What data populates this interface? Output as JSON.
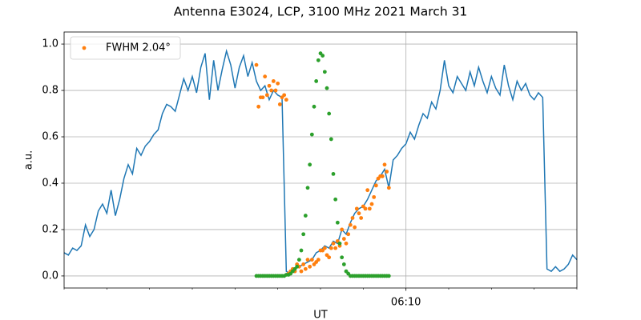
{
  "chart_data": {
    "type": "line",
    "title": "Antenna E3024, LCP, 3100 MHz 2021 March 31",
    "xlabel": "UT",
    "ylabel": "a.u.",
    "xlim": [
      362,
      374
    ],
    "ylim": [
      -0.052,
      1.052
    ],
    "xticks": [
      {
        "value": 370,
        "label": "06:10"
      }
    ],
    "xminorticks": [
      362,
      363,
      364,
      365,
      366,
      367,
      368,
      369,
      371,
      372,
      373,
      374
    ],
    "yticks": [
      {
        "value": 0,
        "label": "0.0"
      },
      0.2,
      0.4,
      0.6,
      0.8,
      {
        "value": 1,
        "label": "1.0"
      }
    ],
    "grid": true,
    "legend": "upper left",
    "series": [
      {
        "color": "#1f77b4",
        "marker": "line",
        "x": [
          362,
          362.1,
          362.2,
          362.3,
          362.4,
          362.5,
          362.6,
          362.7,
          362.8,
          362.9,
          363,
          363.1,
          363.2,
          363.3,
          363.4,
          363.5,
          363.6,
          363.7,
          363.8,
          363.9,
          364,
          364.1,
          364.2,
          364.3,
          364.4,
          364.5,
          364.6,
          364.7,
          364.8,
          364.9,
          365,
          365.1,
          365.2,
          365.3,
          365.4,
          365.5,
          365.6,
          365.7,
          365.8,
          365.9,
          366,
          366.1,
          366.2,
          366.3,
          366.4,
          366.5,
          366.6,
          366.7,
          366.8,
          366.9,
          367,
          367.1,
          367.2,
          367.3,
          367.4,
          367.5,
          367.6,
          367.7,
          367.8,
          367.9,
          368,
          368.1,
          368.2,
          368.3,
          368.4,
          368.5,
          368.6,
          368.7,
          368.8,
          368.9,
          369,
          369.1,
          369.2,
          369.3,
          369.4,
          369.5,
          369.6,
          369.7,
          369.8,
          369.9,
          370,
          370.1,
          370.2,
          370.3,
          370.4,
          370.5,
          370.6,
          370.7,
          370.8,
          370.9,
          371,
          371.1,
          371.2,
          371.3,
          371.4,
          371.5,
          371.6,
          371.7,
          371.8,
          371.9,
          372,
          372.1,
          372.2,
          372.3,
          372.4,
          372.5,
          372.6,
          372.7,
          372.8,
          372.9,
          373,
          373.1,
          373.2,
          373.3,
          373.4,
          373.5,
          373.6,
          373.7,
          373.8,
          373.9,
          374
        ],
        "values": [
          0.1,
          0.09,
          0.12,
          0.11,
          0.13,
          0.22,
          0.17,
          0.2,
          0.28,
          0.31,
          0.27,
          0.37,
          0.26,
          0.33,
          0.42,
          0.48,
          0.44,
          0.55,
          0.52,
          0.56,
          0.58,
          0.61,
          0.63,
          0.7,
          0.74,
          0.73,
          0.71,
          0.78,
          0.85,
          0.8,
          0.86,
          0.79,
          0.9,
          0.96,
          0.76,
          0.93,
          0.8,
          0.89,
          0.97,
          0.91,
          0.81,
          0.9,
          0.95,
          0.86,
          0.92,
          0.84,
          0.8,
          0.82,
          0.76,
          0.8,
          0.78,
          0.77,
          0.02,
          0.01,
          0.03,
          0.04,
          0.05,
          0.06,
          0.07,
          0.1,
          0.11,
          0.13,
          0.12,
          0.15,
          0.14,
          0.2,
          0.18,
          0.23,
          0.27,
          0.29,
          0.3,
          0.33,
          0.37,
          0.41,
          0.43,
          0.46,
          0.38,
          0.5,
          0.52,
          0.55,
          0.57,
          0.62,
          0.59,
          0.65,
          0.7,
          0.68,
          0.75,
          0.72,
          0.8,
          0.93,
          0.82,
          0.79,
          0.86,
          0.83,
          0.8,
          0.88,
          0.82,
          0.9,
          0.84,
          0.79,
          0.86,
          0.81,
          0.78,
          0.91,
          0.82,
          0.76,
          0.84,
          0.8,
          0.83,
          0.78,
          0.76,
          0.79,
          0.77,
          0.03,
          0.02,
          0.04,
          0.02,
          0.03,
          0.05,
          0.09,
          0.07
        ]
      },
      {
        "name": "FWHM 2.04°",
        "color": "#ff7f0e",
        "marker": "dot",
        "x": [
          366.5,
          366.55,
          366.6,
          366.65,
          366.7,
          366.75,
          366.8,
          366.85,
          366.9,
          366.95,
          367,
          367.05,
          367.1,
          367.15,
          367.2,
          367.25,
          367.3,
          367.35,
          367.4,
          367.45,
          367.5,
          367.55,
          367.6,
          367.65,
          367.7,
          367.75,
          367.8,
          367.85,
          367.9,
          367.95,
          368,
          368.05,
          368.1,
          368.15,
          368.2,
          368.25,
          368.3,
          368.35,
          368.4,
          368.45,
          368.5,
          368.55,
          368.6,
          368.65,
          368.7,
          368.75,
          368.8,
          368.85,
          368.9,
          368.95,
          369,
          369.05,
          369.1,
          369.15,
          369.2,
          369.25,
          369.3,
          369.35,
          369.4,
          369.45,
          369.5,
          369.55,
          369.6
        ],
        "values": [
          0.91,
          0.73,
          0.77,
          0.77,
          0.86,
          0.78,
          0.82,
          0.8,
          0.84,
          0.8,
          0.83,
          0.74,
          0.77,
          0.78,
          0.76,
          0.01,
          0.02,
          0.03,
          0.02,
          0.05,
          0.04,
          0.02,
          0.05,
          0.03,
          0.07,
          0.04,
          0.07,
          0.05,
          0.06,
          0.07,
          0.11,
          0.11,
          0.12,
          0.09,
          0.08,
          0.12,
          0.14,
          0.12,
          0.15,
          0.13,
          0.2,
          0.16,
          0.14,
          0.18,
          0.22,
          0.25,
          0.21,
          0.29,
          0.27,
          0.25,
          0.3,
          0.29,
          0.37,
          0.29,
          0.31,
          0.34,
          0.39,
          0.42,
          0.43,
          0.43,
          0.48,
          0.45,
          0.38
        ]
      },
      {
        "color": "#2ca02c",
        "marker": "dot",
        "x": [
          366.5,
          366.55,
          366.6,
          366.65,
          366.7,
          366.75,
          366.8,
          366.85,
          366.9,
          366.95,
          367,
          367.05,
          367.1,
          367.15,
          367.2,
          367.25,
          367.3,
          367.35,
          367.4,
          367.45,
          367.5,
          367.55,
          367.6,
          367.65,
          367.7,
          367.75,
          367.8,
          367.85,
          367.9,
          367.95,
          368,
          368.05,
          368.1,
          368.15,
          368.2,
          368.25,
          368.3,
          368.35,
          368.4,
          368.45,
          368.5,
          368.55,
          368.6,
          368.65,
          368.7,
          368.75,
          368.8,
          368.85,
          368.9,
          368.95,
          369,
          369.05,
          369.1,
          369.15,
          369.2,
          369.25,
          369.3,
          369.35,
          369.4,
          369.45,
          369.5,
          369.55,
          369.6
        ],
        "values": [
          0,
          0,
          0,
          0,
          0,
          0,
          0,
          0,
          0,
          0,
          0,
          0,
          0,
          0,
          0.005,
          0.005,
          0.01,
          0.02,
          0.03,
          0.04,
          0.07,
          0.11,
          0.18,
          0.26,
          0.38,
          0.48,
          0.61,
          0.73,
          0.84,
          0.93,
          0.96,
          0.95,
          0.88,
          0.81,
          0.7,
          0.59,
          0.44,
          0.33,
          0.23,
          0.14,
          0.08,
          0.05,
          0.02,
          0.01,
          0,
          0,
          0,
          0,
          0,
          0,
          0,
          0,
          0,
          0,
          0,
          0,
          0,
          0,
          0,
          0,
          0,
          0,
          0
        ]
      }
    ]
  }
}
